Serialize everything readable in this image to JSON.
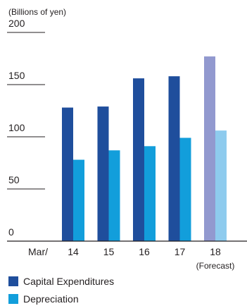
{
  "chart_data": {
    "type": "bar",
    "unit_label": "(Billions of yen)",
    "x_prefix": "Mar/",
    "categories": [
      "14",
      "15",
      "16",
      "17",
      "18"
    ],
    "category_notes": [
      "",
      "",
      "",
      "",
      "(Forecast)"
    ],
    "forecast_index": 4,
    "series": [
      {
        "name": "Capital Expenditures",
        "values": [
          128,
          129,
          156,
          158,
          177
        ]
      },
      {
        "name": "Depreciation",
        "values": [
          78,
          87,
          91,
          99,
          106
        ]
      }
    ],
    "ylim": [
      0,
      200
    ],
    "yticks": [
      0,
      50,
      100,
      150,
      200
    ],
    "colors": {
      "capex": "#1f4e9c",
      "depreciation": "#129edb",
      "capex_forecast": "#9299cf",
      "depreciation_forecast": "#8ecbee",
      "axis": "#231f20"
    }
  }
}
